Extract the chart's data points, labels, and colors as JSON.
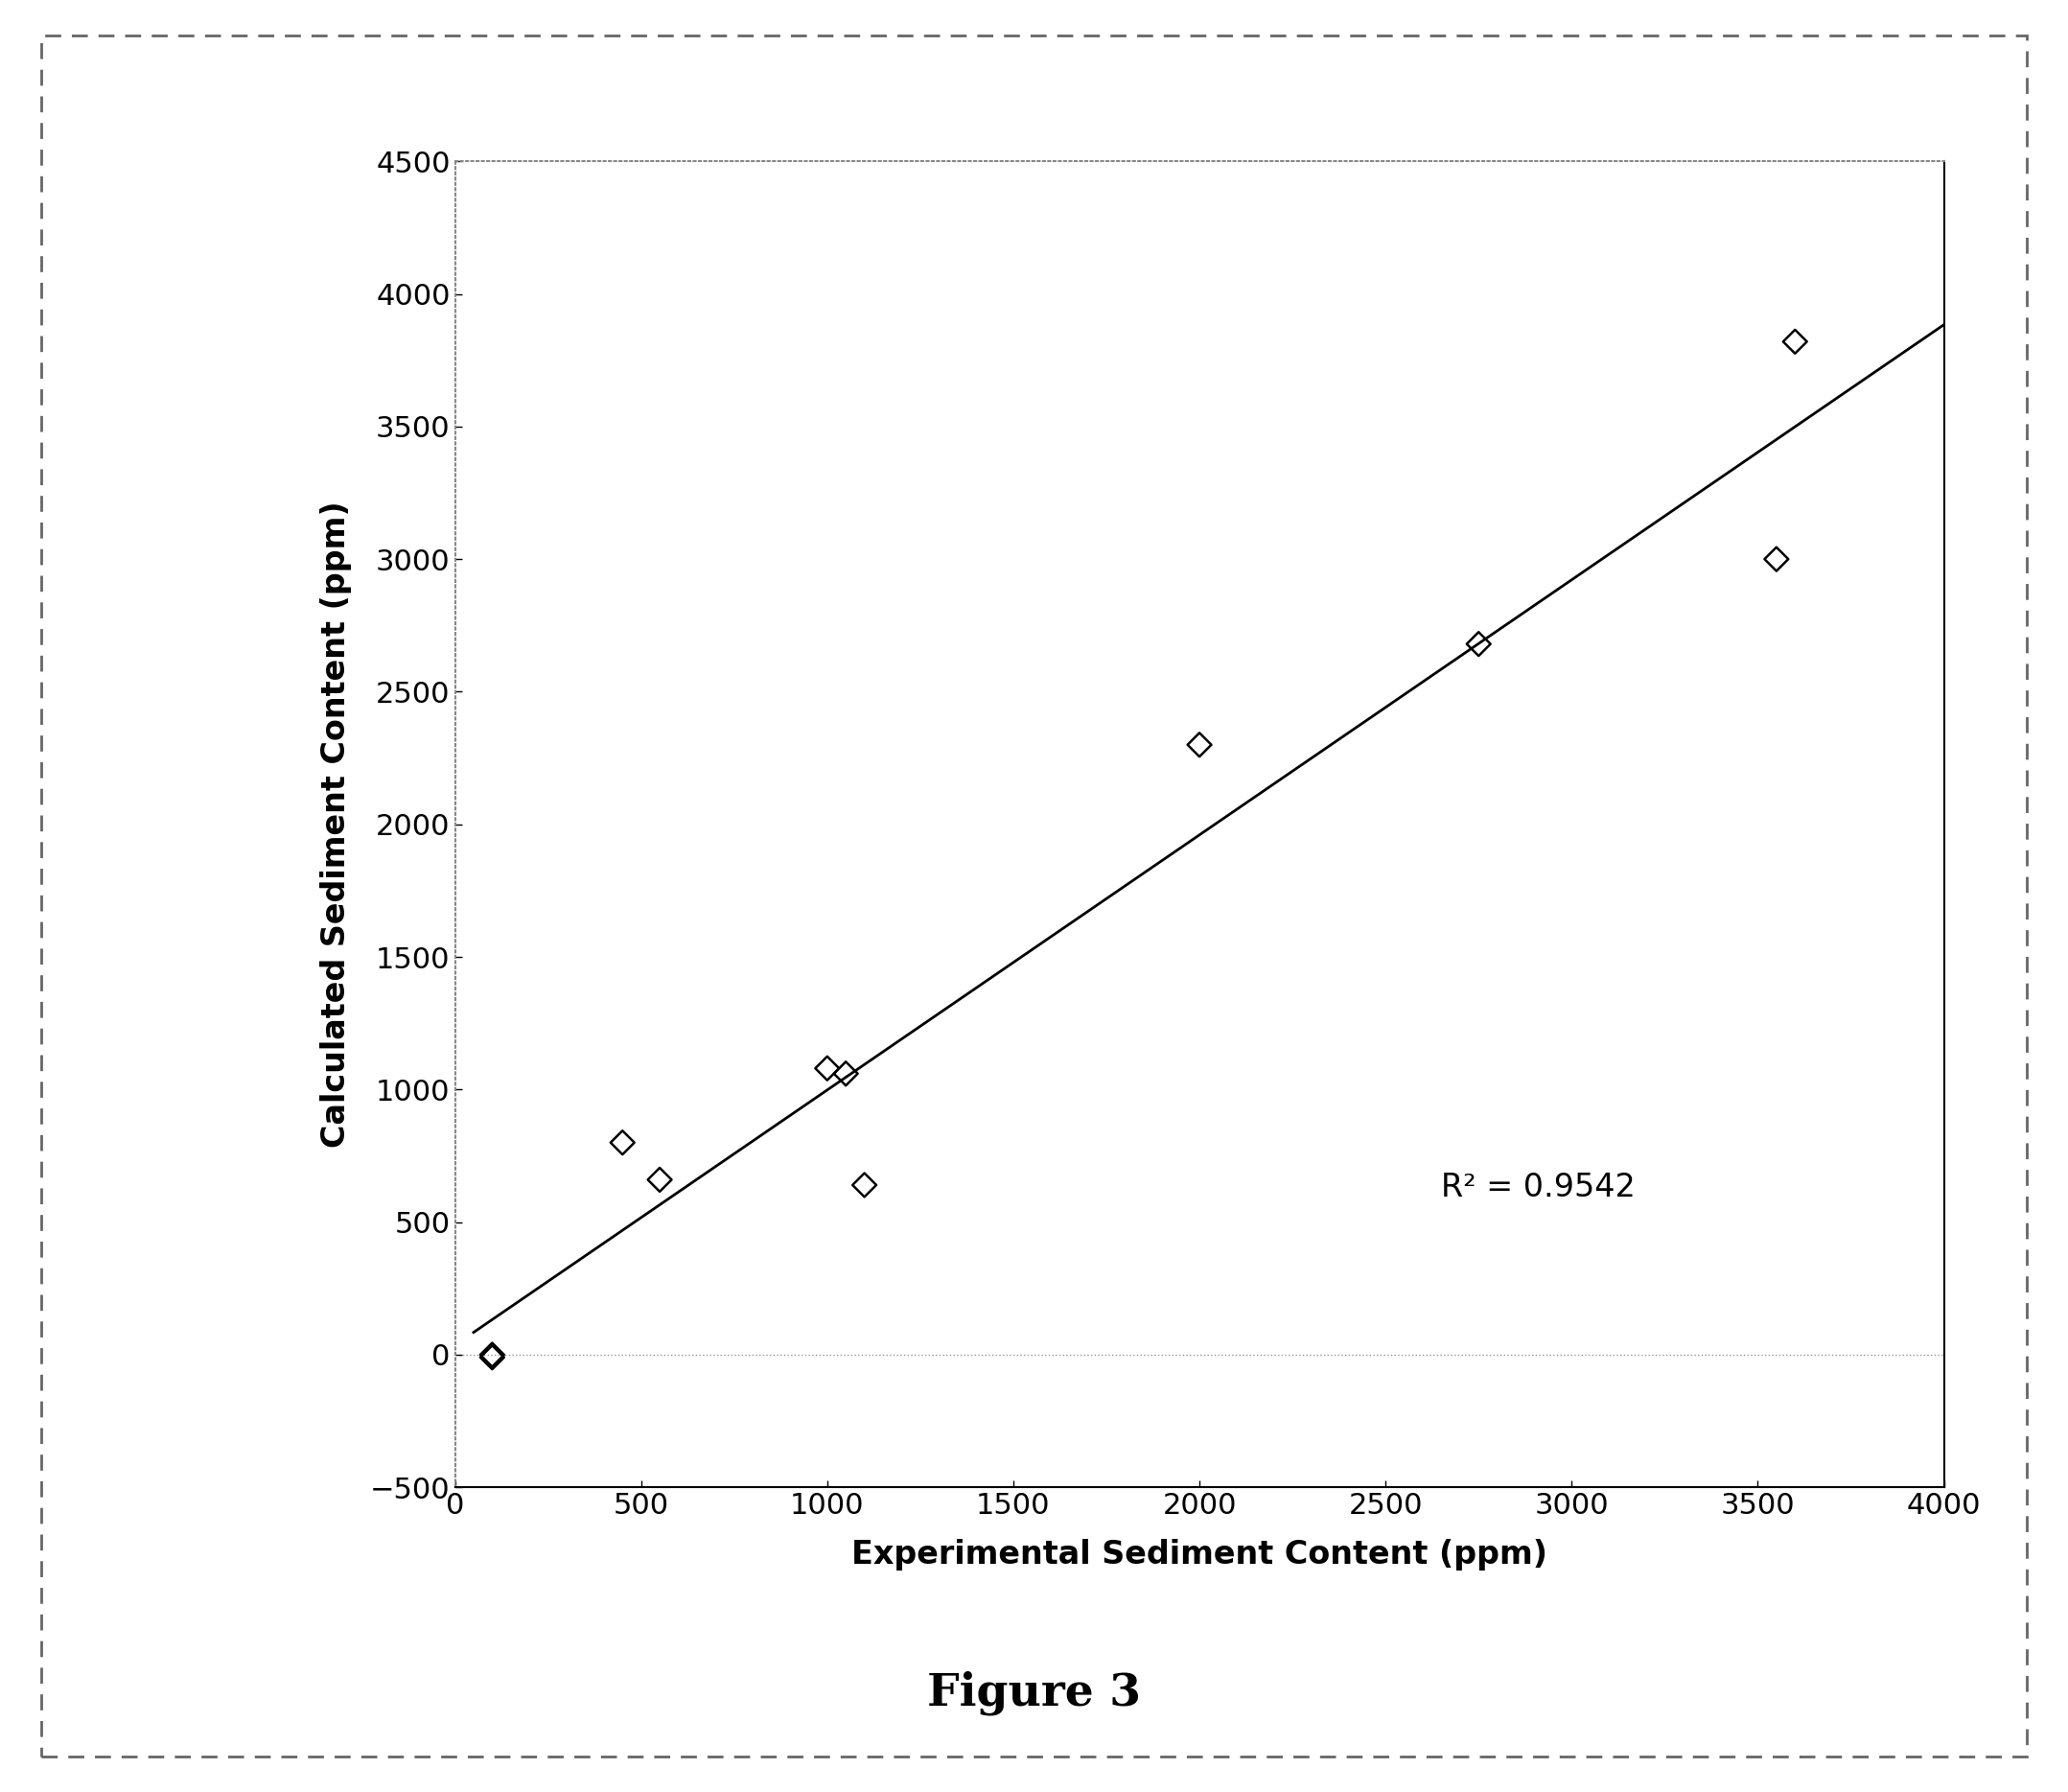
{
  "x_data": [
    100,
    100,
    450,
    550,
    1000,
    1050,
    1100,
    2000,
    2750,
    3550,
    3600
  ],
  "y_data": [
    -10,
    0,
    800,
    660,
    1080,
    1060,
    640,
    2300,
    2680,
    3000,
    3820
  ],
  "xlabel": "Experimental Sediment Content (ppm)",
  "ylabel": "Calculated Sediment Content (ppm)",
  "figure_label": "Figure 3",
  "r2_text": "R² = 0.9542",
  "r2_x": 2650,
  "r2_y": 630,
  "xlim": [
    0,
    4000
  ],
  "ylim": [
    -500,
    4500
  ],
  "xticks": [
    0,
    500,
    1000,
    1500,
    2000,
    2500,
    3000,
    3500,
    4000
  ],
  "yticks": [
    -500,
    0,
    500,
    1000,
    1500,
    2000,
    2500,
    3000,
    3500,
    4000,
    4500
  ],
  "marker_edgecolor": "#000000",
  "line_color": "#000000",
  "background_color": "#ffffff",
  "label_fontsize": 24,
  "tick_fontsize": 22,
  "annotation_fontsize": 24,
  "figure_label_fontsize": 34
}
